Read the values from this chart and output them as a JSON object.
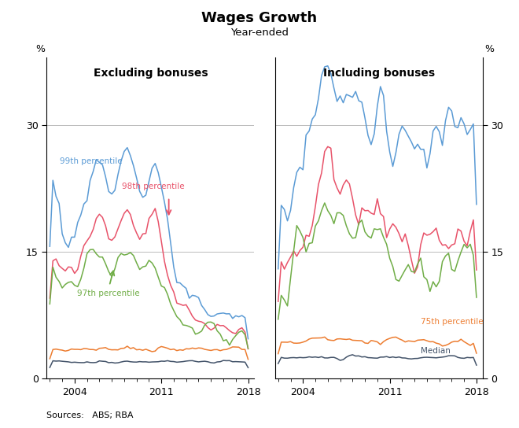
{
  "title": "Wages Growth",
  "subtitle": "Year-ended",
  "ylabel": "%",
  "left_panel_title": "Excluding bonuses",
  "right_panel_title": "Including bonuses",
  "source": "Sources:   ABS; RBA",
  "xlim": [
    2001.75,
    2018.5
  ],
  "ylim": [
    0,
    38
  ],
  "yticks": [
    0,
    15,
    30
  ],
  "xticks": [
    2004,
    2011,
    2018
  ],
  "colors": {
    "p99": "#5B9BD5",
    "p98": "#E8536A",
    "p97": "#70AD47",
    "p75": "#ED7D31",
    "median": "#44546A"
  },
  "background_color": "#FFFFFF",
  "grid_color": "#BBBBBB",
  "lw": 1.1
}
